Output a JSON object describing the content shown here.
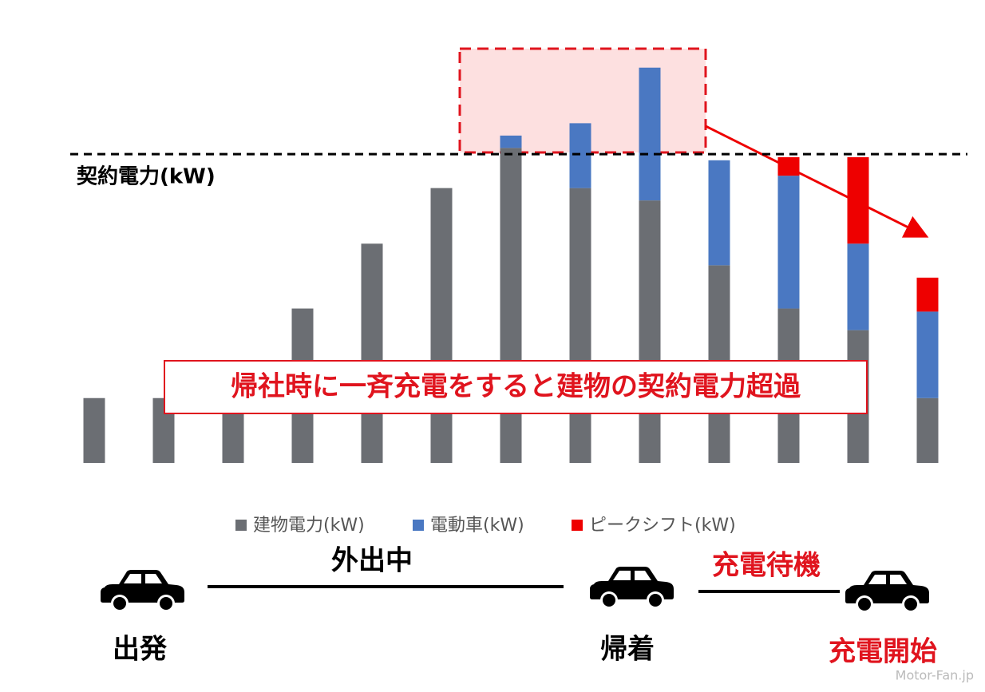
{
  "chart_data": {
    "type": "stacked-bar",
    "categories": [
      null,
      null,
      null,
      null,
      null,
      null,
      null,
      null,
      null,
      null,
      null,
      null,
      null
    ],
    "series": [
      {
        "name": "建物電力(kW)",
        "color": "#6b6e73",
        "values": [
          21,
          21,
          21,
          50,
          71,
          89,
          102,
          89,
          85,
          64,
          50,
          43,
          21
        ]
      },
      {
        "name": "電動車(kW)",
        "color": "#4a78c2",
        "values": [
          0,
          0,
          0,
          0,
          0,
          0,
          4,
          21,
          43,
          34,
          43,
          28,
          28
        ]
      },
      {
        "name": "ピークシフト(kW)",
        "color": "#ee0000",
        "values": [
          0,
          0,
          0,
          0,
          0,
          0,
          0,
          0,
          0,
          0,
          6,
          28,
          11
        ]
      }
    ],
    "ylim": [
      0,
      130
    ],
    "contract_line": {
      "label": "契約電力(kW)",
      "value": 100
    },
    "annotation": "帰社時に一斉充電をすると建物の契約電力超過",
    "legend_position": "bottom"
  },
  "timeline": {
    "phases": [
      "外出中",
      "充電待機"
    ],
    "events": [
      "出発",
      "帰着",
      "充電開始"
    ]
  },
  "watermark": "Motor-Fan.jp"
}
